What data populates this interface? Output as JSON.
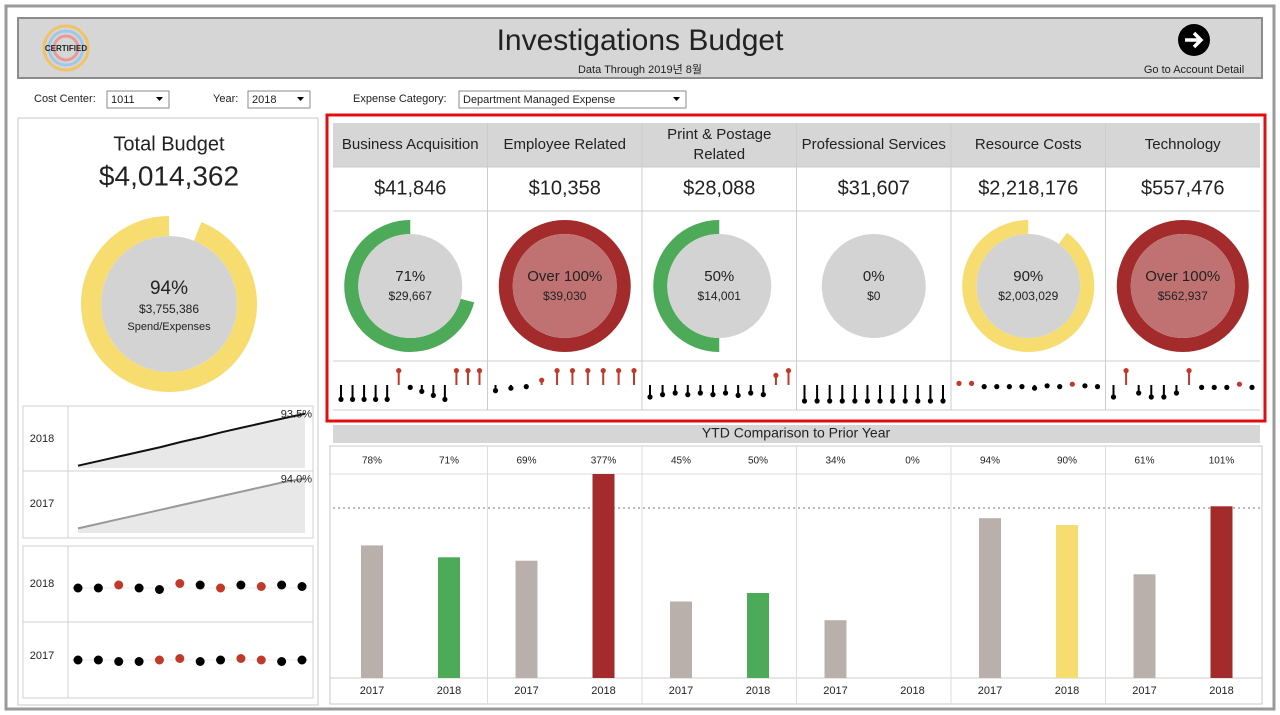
{
  "header": {
    "title": "Investigations Budget",
    "subtitle": "Data Through 2019년 8월",
    "link": "Go to Account Detail",
    "logo": "CERTIFIED"
  },
  "filters": [
    {
      "label": "Cost Center:",
      "value": "1011"
    },
    {
      "label": "Year:",
      "value": "2018"
    },
    {
      "label": "Expense Category:",
      "value": "Department Managed Expense"
    }
  ],
  "total": {
    "title": "Total Budget",
    "amount": 4014362,
    "amount_label": "$4,014,362",
    "pct": 94,
    "pct_label": "94%",
    "spend": 3755386,
    "spend_label": "$3,755,386",
    "caption": "Spend/Expenses",
    "color": "#f7dc6f",
    "fill": "#d3d3d3"
  },
  "trend": {
    "type": "line",
    "ylim": [
      0,
      100
    ],
    "series": [
      {
        "name": "2018",
        "color": "#111111",
        "values": [
          4,
          12,
          20,
          28,
          36,
          45,
          53,
          62,
          70,
          78,
          86,
          93.5
        ],
        "value_labels": [
          null,
          null,
          null,
          null,
          null,
          null,
          null,
          null,
          null,
          null,
          null,
          "93.5%"
        ]
      },
      {
        "name": "2017",
        "color": "#999999",
        "values": [
          8,
          16,
          24,
          32,
          40,
          48,
          56,
          64,
          72,
          80,
          88,
          94
        ],
        "value_labels": [
          null,
          null,
          null,
          null,
          null,
          null,
          null,
          null,
          null,
          null,
          null,
          "94.0%"
        ]
      }
    ]
  },
  "monthly": {
    "type": "dot",
    "ylim": [
      -10,
      10
    ],
    "series": [
      {
        "name": "2018",
        "values": [
          0,
          0,
          2,
          0,
          -1,
          3,
          2,
          0,
          2,
          1,
          2,
          1
        ],
        "colors": [
          "#000",
          "#000",
          "#c0392b",
          "#000",
          "#000",
          "#c0392b",
          "#000",
          "#c0392b",
          "#000",
          "#c0392b",
          "#000",
          "#000"
        ]
      },
      {
        "name": "2017",
        "values": [
          0,
          0,
          -1,
          -1,
          0,
          1,
          -1,
          0,
          1,
          0,
          -1,
          0
        ],
        "colors": [
          "#000",
          "#000",
          "#000",
          "#000",
          "#c0392b",
          "#c0392b",
          "#000",
          "#000",
          "#c0392b",
          "#c0392b",
          "#000",
          "#000"
        ]
      }
    ]
  },
  "categories": {
    "spark_ylim": [
      -25,
      25
    ],
    "up_color": "#c0392b",
    "down_color": "#000000",
    "items": [
      {
        "name": "Business Acquisition",
        "budget": 41846,
        "budget_label": "$41,846",
        "pct": 71,
        "pct_label": "71%",
        "spend": 29667,
        "spend_label": "$29,667",
        "color": "#4caa58",
        "fill": "#d3d3d3",
        "spark": [
          -18,
          -18,
          -18,
          -18,
          -18,
          18,
          -3,
          -8,
          -13,
          -18,
          18,
          18,
          18
        ]
      },
      {
        "name": "Employee Related",
        "budget": 10358,
        "budget_label": "$10,358",
        "pct": 377,
        "pct_label": "Over 100%",
        "spend": 39030,
        "spend_label": "$39,030",
        "color": "#a32b2b",
        "fill": "#c07272",
        "spark": [
          -7,
          -4,
          -2,
          6,
          18,
          18,
          18,
          18,
          18,
          18
        ]
      },
      {
        "name": "Print & Postage Related",
        "budget": 28088,
        "budget_label": "$28,088",
        "pct": 50,
        "pct_label": "50%",
        "spend": 14001,
        "spend_label": "$14,001",
        "color": "#4caa58",
        "fill": "#d3d3d3",
        "spark": [
          -15,
          -12,
          -10,
          -12,
          -10,
          -12,
          -10,
          -13,
          -10,
          -12,
          12,
          18
        ]
      },
      {
        "name": "Professional Services",
        "budget": 31607,
        "budget_label": "$31,607",
        "pct": 0,
        "pct_label": "0%",
        "spend": 0,
        "spend_label": "$0",
        "color": "#4caa58",
        "fill": "#d3d3d3",
        "spark": [
          -20,
          -20,
          -20,
          -20,
          -20,
          -20,
          -20,
          -20,
          -20,
          -20,
          -20,
          -20
        ]
      },
      {
        "name": "Resource Costs",
        "budget": 2218176,
        "budget_label": "$2,218,176",
        "pct": 90,
        "pct_label": "90%",
        "spend": 2003029,
        "spend_label": "$2,003,029",
        "color": "#f7dc6f",
        "fill": "#d3d3d3",
        "spark": [
          2,
          2,
          -2,
          -2,
          -2,
          -2,
          -4,
          -1,
          -2,
          1,
          -1,
          -2
        ]
      },
      {
        "name": "Technology",
        "budget": 557476,
        "budget_label": "$557,476",
        "pct": 101,
        "pct_label": "Over 100%",
        "spend": 562937,
        "spend_label": "$562,937",
        "color": "#a32b2b",
        "fill": "#c07272",
        "spark": [
          -15,
          18,
          -10,
          -15,
          -15,
          -10,
          18,
          -3,
          -3,
          -3,
          1,
          -3
        ]
      }
    ]
  },
  "chart_data": {
    "type": "bar",
    "title": "YTD Comparison to Prior Year",
    "ylim": [
      0,
      120
    ],
    "reference_line": 100,
    "series": [
      {
        "name": "2017",
        "color": "#b9b0ab",
        "values": [
          78,
          69,
          45,
          34,
          94,
          61
        ],
        "value_labels": [
          "78%",
          "69%",
          "45%",
          "34%",
          "94%",
          "61%"
        ],
        "label_colors": [
          "#555",
          "#555",
          "#555",
          "#555",
          "#555",
          "#555"
        ]
      },
      {
        "name": "2018",
        "colors": [
          "#4caa58",
          "#a32b2b",
          "#4caa58",
          "#4caa58",
          "#f7dc6f",
          "#a32b2b"
        ],
        "values": [
          71,
          377,
          50,
          0,
          90,
          101
        ],
        "value_labels": [
          "71%",
          "377%",
          "50%",
          "0%",
          "90%",
          "101%"
        ],
        "label_colors": [
          "#555",
          "#a32b2b",
          "#555",
          "#555",
          "#555",
          "#a32b2b"
        ]
      }
    ]
  }
}
